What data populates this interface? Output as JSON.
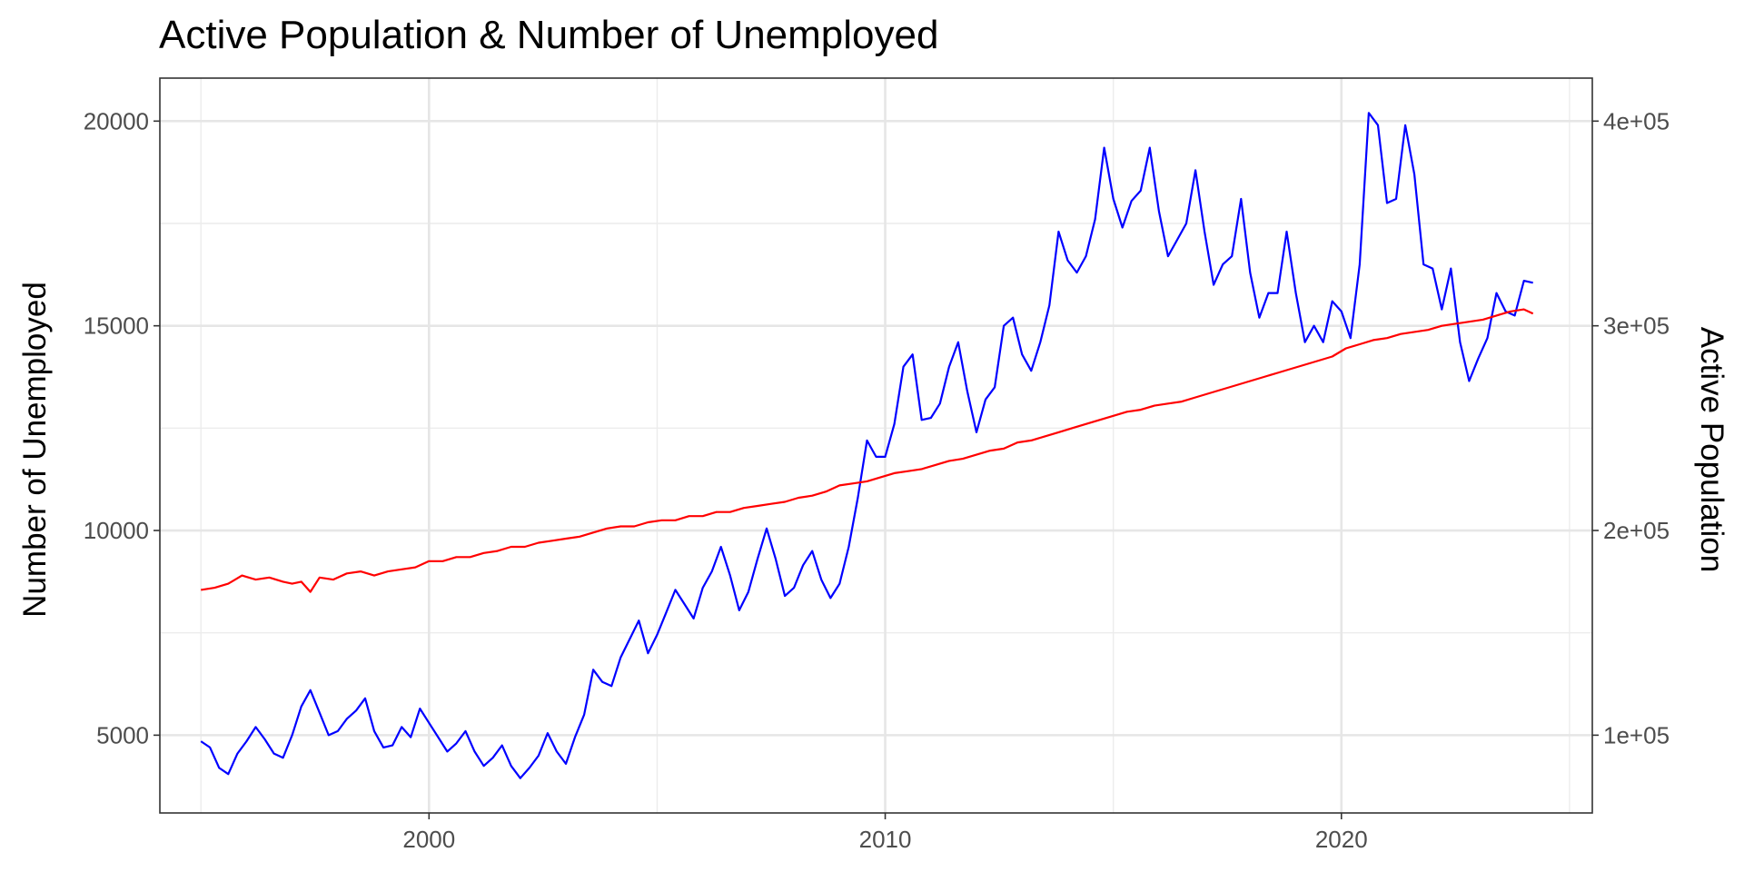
{
  "chart_data": {
    "type": "line",
    "title": "Active Population & Number of Unemployed",
    "ylabel": "Number of Unemployed",
    "y2label": "Active Population",
    "xlim": [
      1994.1,
      2025.5
    ],
    "ylim": [
      3100,
      21050
    ],
    "y2lim": [
      62000,
      421000
    ],
    "x_ticks": [
      {
        "value": 2000,
        "label": "2000"
      },
      {
        "value": 2010,
        "label": "2010"
      },
      {
        "value": 2020,
        "label": "2020"
      }
    ],
    "y_ticks": [
      {
        "value": 5000,
        "label": "5000"
      },
      {
        "value": 10000,
        "label": "10000"
      },
      {
        "value": 15000,
        "label": "15000"
      },
      {
        "value": 20000,
        "label": "20000"
      }
    ],
    "y2_ticks": [
      {
        "value": 100000,
        "label": "1e+05"
      },
      {
        "value": 200000,
        "label": "2e+05"
      },
      {
        "value": 300000,
        "label": "3e+05"
      },
      {
        "value": 400000,
        "label": "4e+05"
      }
    ],
    "grid": true,
    "legend": "none",
    "series": [
      {
        "axis": "left",
        "color": "#0000ff",
        "points": [
          [
            1995.0,
            4850
          ],
          [
            1995.2,
            4700
          ],
          [
            1995.4,
            4200
          ],
          [
            1995.6,
            4050
          ],
          [
            1995.8,
            4550
          ],
          [
            1996.0,
            4850
          ],
          [
            1996.2,
            5200
          ],
          [
            1996.4,
            4900
          ],
          [
            1996.6,
            4550
          ],
          [
            1996.8,
            4450
          ],
          [
            1997.0,
            5000
          ],
          [
            1997.2,
            5700
          ],
          [
            1997.4,
            6100
          ],
          [
            1997.6,
            5550
          ],
          [
            1997.8,
            5000
          ],
          [
            1998.0,
            5100
          ],
          [
            1998.2,
            5400
          ],
          [
            1998.4,
            5600
          ],
          [
            1998.6,
            5900
          ],
          [
            1998.8,
            5100
          ],
          [
            1999.0,
            4700
          ],
          [
            1999.2,
            4750
          ],
          [
            1999.4,
            5200
          ],
          [
            1999.6,
            4950
          ],
          [
            1999.8,
            5650
          ],
          [
            2000.0,
            5300
          ],
          [
            2000.2,
            4950
          ],
          [
            2000.4,
            4600
          ],
          [
            2000.6,
            4800
          ],
          [
            2000.8,
            5100
          ],
          [
            2001.0,
            4600
          ],
          [
            2001.2,
            4250
          ],
          [
            2001.4,
            4450
          ],
          [
            2001.6,
            4750
          ],
          [
            2001.8,
            4250
          ],
          [
            2002.0,
            3950
          ],
          [
            2002.2,
            4200
          ],
          [
            2002.4,
            4500
          ],
          [
            2002.6,
            5050
          ],
          [
            2002.8,
            4600
          ],
          [
            2003.0,
            4300
          ],
          [
            2003.2,
            4950
          ],
          [
            2003.4,
            5500
          ],
          [
            2003.6,
            6600
          ],
          [
            2003.8,
            6300
          ],
          [
            2004.0,
            6200
          ],
          [
            2004.2,
            6900
          ],
          [
            2004.4,
            7350
          ],
          [
            2004.6,
            7800
          ],
          [
            2004.8,
            7000
          ],
          [
            2005.0,
            7450
          ],
          [
            2005.2,
            8000
          ],
          [
            2005.4,
            8550
          ],
          [
            2005.6,
            8200
          ],
          [
            2005.8,
            7850
          ],
          [
            2006.0,
            8600
          ],
          [
            2006.2,
            9000
          ],
          [
            2006.4,
            9600
          ],
          [
            2006.6,
            8900
          ],
          [
            2006.8,
            8050
          ],
          [
            2007.0,
            8500
          ],
          [
            2007.2,
            9300
          ],
          [
            2007.4,
            10050
          ],
          [
            2007.6,
            9300
          ],
          [
            2007.8,
            8400
          ],
          [
            2008.0,
            8600
          ],
          [
            2008.2,
            9150
          ],
          [
            2008.4,
            9500
          ],
          [
            2008.6,
            8800
          ],
          [
            2008.8,
            8350
          ],
          [
            2009.0,
            8700
          ],
          [
            2009.2,
            9600
          ],
          [
            2009.4,
            10800
          ],
          [
            2009.6,
            12200
          ],
          [
            2009.8,
            11800
          ],
          [
            2010.0,
            11800
          ],
          [
            2010.2,
            12600
          ],
          [
            2010.4,
            14000
          ],
          [
            2010.6,
            14300
          ],
          [
            2010.8,
            12700
          ],
          [
            2011.0,
            12750
          ],
          [
            2011.2,
            13100
          ],
          [
            2011.4,
            14000
          ],
          [
            2011.6,
            14600
          ],
          [
            2011.8,
            13400
          ],
          [
            2012.0,
            12400
          ],
          [
            2012.2,
            13200
          ],
          [
            2012.4,
            13500
          ],
          [
            2012.6,
            15000
          ],
          [
            2012.8,
            15200
          ],
          [
            2013.0,
            14300
          ],
          [
            2013.2,
            13900
          ],
          [
            2013.4,
            14600
          ],
          [
            2013.6,
            15500
          ],
          [
            2013.8,
            17300
          ],
          [
            2014.0,
            16600
          ],
          [
            2014.2,
            16300
          ],
          [
            2014.4,
            16700
          ],
          [
            2014.6,
            17600
          ],
          [
            2014.8,
            19350
          ],
          [
            2015.0,
            18100
          ],
          [
            2015.2,
            17400
          ],
          [
            2015.4,
            18050
          ],
          [
            2015.6,
            18300
          ],
          [
            2015.8,
            19350
          ],
          [
            2016.0,
            17800
          ],
          [
            2016.2,
            16700
          ],
          [
            2016.4,
            17100
          ],
          [
            2016.6,
            17500
          ],
          [
            2016.8,
            18800
          ],
          [
            2017.0,
            17300
          ],
          [
            2017.2,
            16000
          ],
          [
            2017.4,
            16500
          ],
          [
            2017.6,
            16700
          ],
          [
            2017.8,
            18100
          ],
          [
            2018.0,
            16300
          ],
          [
            2018.2,
            15200
          ],
          [
            2018.4,
            15800
          ],
          [
            2018.6,
            15800
          ],
          [
            2018.8,
            17300
          ],
          [
            2019.0,
            15800
          ],
          [
            2019.2,
            14600
          ],
          [
            2019.4,
            15000
          ],
          [
            2019.6,
            14600
          ],
          [
            2019.8,
            15600
          ],
          [
            2020.0,
            15350
          ],
          [
            2020.2,
            14700
          ],
          [
            2020.4,
            16500
          ],
          [
            2020.6,
            20200
          ],
          [
            2020.8,
            19900
          ],
          [
            2021.0,
            18000
          ],
          [
            2021.2,
            18100
          ],
          [
            2021.4,
            19900
          ],
          [
            2021.6,
            18700
          ],
          [
            2021.8,
            16500
          ],
          [
            2022.0,
            16400
          ],
          [
            2022.2,
            15400
          ],
          [
            2022.4,
            16400
          ],
          [
            2022.6,
            14600
          ],
          [
            2022.8,
            13650
          ],
          [
            2023.0,
            14200
          ],
          [
            2023.2,
            14700
          ],
          [
            2023.4,
            15800
          ],
          [
            2023.6,
            15350
          ],
          [
            2023.8,
            15250
          ],
          [
            2024.0,
            16100
          ],
          [
            2024.2,
            16050
          ]
        ]
      },
      {
        "axis": "right",
        "color": "#ff0000",
        "points": [
          [
            1995.0,
            171000
          ],
          [
            1995.3,
            172000
          ],
          [
            1995.6,
            174000
          ],
          [
            1995.9,
            178000
          ],
          [
            1996.2,
            176000
          ],
          [
            1996.5,
            177000
          ],
          [
            1996.8,
            175000
          ],
          [
            1997.0,
            174000
          ],
          [
            1997.2,
            175000
          ],
          [
            1997.4,
            170000
          ],
          [
            1997.6,
            177000
          ],
          [
            1997.9,
            176000
          ],
          [
            1998.2,
            179000
          ],
          [
            1998.5,
            180000
          ],
          [
            1998.8,
            178000
          ],
          [
            1999.1,
            180000
          ],
          [
            1999.4,
            181000
          ],
          [
            1999.7,
            182000
          ],
          [
            2000.0,
            185000
          ],
          [
            2000.3,
            185000
          ],
          [
            2000.6,
            187000
          ],
          [
            2000.9,
            187000
          ],
          [
            2001.2,
            189000
          ],
          [
            2001.5,
            190000
          ],
          [
            2001.8,
            192000
          ],
          [
            2002.1,
            192000
          ],
          [
            2002.4,
            194000
          ],
          [
            2002.7,
            195000
          ],
          [
            2003.0,
            196000
          ],
          [
            2003.3,
            197000
          ],
          [
            2003.6,
            199000
          ],
          [
            2003.9,
            201000
          ],
          [
            2004.2,
            202000
          ],
          [
            2004.5,
            202000
          ],
          [
            2004.8,
            204000
          ],
          [
            2005.1,
            205000
          ],
          [
            2005.4,
            205000
          ],
          [
            2005.7,
            207000
          ],
          [
            2006.0,
            207000
          ],
          [
            2006.3,
            209000
          ],
          [
            2006.6,
            209000
          ],
          [
            2006.9,
            211000
          ],
          [
            2007.2,
            212000
          ],
          [
            2007.5,
            213000
          ],
          [
            2007.8,
            214000
          ],
          [
            2008.1,
            216000
          ],
          [
            2008.4,
            217000
          ],
          [
            2008.7,
            219000
          ],
          [
            2009.0,
            222000
          ],
          [
            2009.3,
            223000
          ],
          [
            2009.6,
            224000
          ],
          [
            2009.9,
            226000
          ],
          [
            2010.2,
            228000
          ],
          [
            2010.5,
            229000
          ],
          [
            2010.8,
            230000
          ],
          [
            2011.1,
            232000
          ],
          [
            2011.4,
            234000
          ],
          [
            2011.7,
            235000
          ],
          [
            2012.0,
            237000
          ],
          [
            2012.3,
            239000
          ],
          [
            2012.6,
            240000
          ],
          [
            2012.9,
            243000
          ],
          [
            2013.2,
            244000
          ],
          [
            2013.5,
            246000
          ],
          [
            2013.8,
            248000
          ],
          [
            2014.1,
            250000
          ],
          [
            2014.4,
            252000
          ],
          [
            2014.7,
            254000
          ],
          [
            2015.0,
            256000
          ],
          [
            2015.3,
            258000
          ],
          [
            2015.6,
            259000
          ],
          [
            2015.9,
            261000
          ],
          [
            2016.2,
            262000
          ],
          [
            2016.5,
            263000
          ],
          [
            2016.8,
            265000
          ],
          [
            2017.1,
            267000
          ],
          [
            2017.4,
            269000
          ],
          [
            2017.7,
            271000
          ],
          [
            2018.0,
            273000
          ],
          [
            2018.3,
            275000
          ],
          [
            2018.6,
            277000
          ],
          [
            2018.9,
            279000
          ],
          [
            2019.2,
            281000
          ],
          [
            2019.5,
            283000
          ],
          [
            2019.8,
            285000
          ],
          [
            2020.1,
            289000
          ],
          [
            2020.4,
            291000
          ],
          [
            2020.7,
            293000
          ],
          [
            2021.0,
            294000
          ],
          [
            2021.3,
            296000
          ],
          [
            2021.6,
            297000
          ],
          [
            2021.9,
            298000
          ],
          [
            2022.2,
            300000
          ],
          [
            2022.5,
            301000
          ],
          [
            2022.8,
            302000
          ],
          [
            2023.1,
            303000
          ],
          [
            2023.4,
            305000
          ],
          [
            2023.7,
            307000
          ],
          [
            2024.0,
            308000
          ],
          [
            2024.2,
            306000
          ]
        ]
      }
    ]
  }
}
